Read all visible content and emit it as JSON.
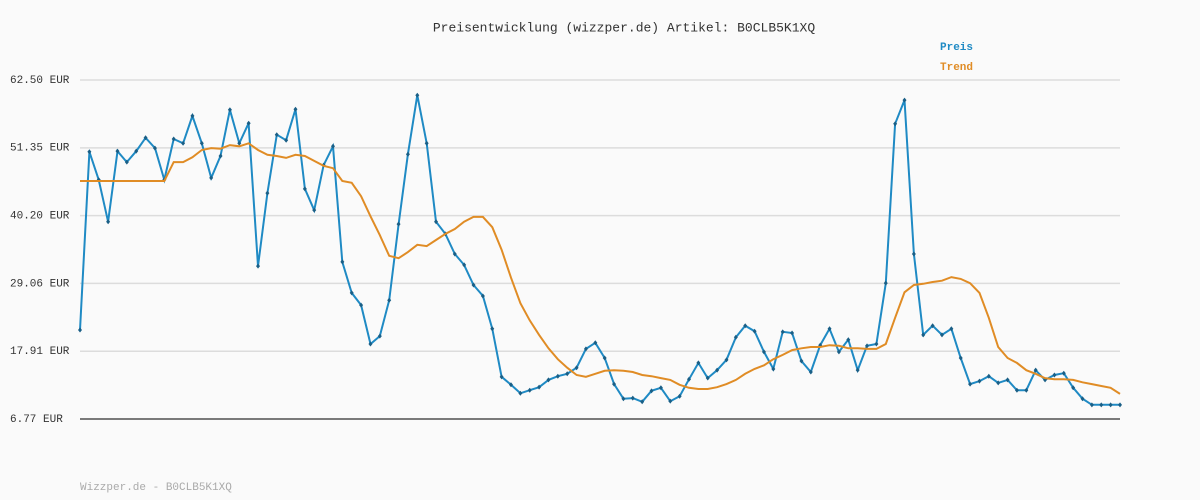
{
  "chart_data": {
    "type": "line",
    "title": "Preisentwicklung (wizzper.de) Artikel: B0CLB5K1XQ",
    "ylim": [
      6.77,
      62.5
    ],
    "yticks": [
      {
        "value": 6.77,
        "label": "6.77 EUR"
      },
      {
        "value": 17.91,
        "label": "17.91 EUR"
      },
      {
        "value": 29.06,
        "label": "29.06 EUR"
      },
      {
        "value": 40.2,
        "label": "40.20 EUR"
      },
      {
        "value": 51.35,
        "label": "51.35 EUR"
      },
      {
        "value": 62.5,
        "label": "62.50 EUR"
      }
    ],
    "grid": true,
    "legend": "top-right",
    "series": [
      {
        "name": "Preis",
        "color": "#1f8ac4",
        "markers": true,
        "values": [
          21.4,
          50.7,
          46.1,
          39.2,
          50.8,
          49.0,
          50.8,
          53.0,
          51.3,
          46.1,
          52.8,
          52.1,
          56.6,
          52.1,
          46.4,
          50.0,
          57.6,
          52.1,
          55.4,
          31.9,
          43.9,
          53.5,
          52.6,
          57.7,
          44.6,
          41.1,
          48.5,
          51.6,
          32.6,
          27.5,
          25.5,
          19.1,
          20.4,
          26.3,
          38.8,
          50.3,
          60.0,
          52.1,
          39.2,
          37.2,
          33.9,
          32.1,
          28.8,
          27.0,
          21.6,
          13.7,
          12.4,
          11.0,
          11.5,
          12.0,
          13.2,
          13.8,
          14.2,
          15.2,
          18.3,
          19.3,
          16.8,
          12.5,
          10.1,
          10.2,
          9.6,
          11.4,
          11.9,
          9.7,
          10.5,
          13.3,
          16.0,
          13.5,
          14.8,
          16.5,
          20.2,
          22.1,
          21.2,
          17.8,
          15.0,
          21.1,
          20.9,
          16.3,
          14.5,
          18.9,
          21.6,
          17.8,
          19.8,
          14.8,
          18.8,
          19.1,
          29.1,
          55.3,
          59.2,
          33.9,
          20.6,
          22.1,
          20.6,
          21.6,
          16.8,
          12.5,
          13.0,
          13.8,
          12.7,
          13.2,
          11.5,
          11.5,
          14.8,
          13.2,
          14.0,
          14.3,
          11.9,
          10.1,
          9.1,
          9.1,
          9.1,
          9.1
        ]
      },
      {
        "name": "Trend",
        "color": "#e08c25",
        "markers": false,
        "values": [
          45.9,
          45.9,
          45.9,
          45.9,
          45.9,
          45.9,
          45.9,
          45.9,
          45.9,
          45.9,
          49.0,
          49.0,
          49.8,
          51.0,
          51.3,
          51.2,
          51.8,
          51.6,
          52.1,
          51.0,
          50.2,
          50.0,
          49.7,
          50.2,
          50.0,
          49.2,
          48.4,
          48.0,
          45.9,
          45.6,
          43.4,
          40.1,
          37.0,
          33.6,
          33.2,
          34.2,
          35.4,
          35.2,
          36.2,
          37.2,
          38.0,
          39.2,
          40.0,
          40.0,
          38.3,
          34.6,
          30.0,
          25.8,
          23.0,
          20.6,
          18.4,
          16.6,
          15.2,
          14.0,
          13.7,
          14.2,
          14.7,
          14.8,
          14.7,
          14.5,
          14.0,
          13.8,
          13.5,
          13.2,
          12.4,
          11.9,
          11.7,
          11.7,
          12.0,
          12.5,
          13.2,
          14.2,
          15.0,
          15.6,
          16.6,
          17.3,
          18.1,
          18.4,
          18.6,
          18.6,
          18.9,
          18.8,
          18.4,
          18.4,
          18.3,
          18.3,
          19.1,
          23.4,
          27.6,
          28.8,
          29.0,
          29.3,
          29.5,
          30.1,
          29.8,
          29.1,
          27.5,
          23.4,
          18.6,
          16.8,
          16.0,
          14.8,
          14.2,
          13.5,
          13.3,
          13.3,
          13.2,
          12.8,
          12.5,
          12.2,
          11.9,
          10.9
        ]
      }
    ],
    "footer": "Wizzper.de - B0CLB5K1XQ"
  }
}
